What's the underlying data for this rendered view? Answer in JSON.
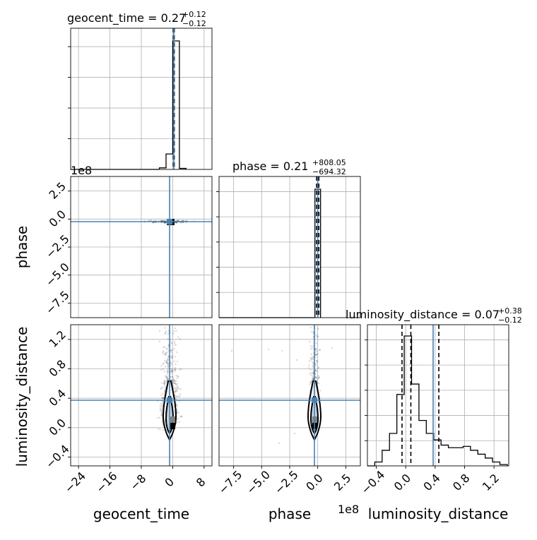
{
  "chart_data": {
    "type": "corner",
    "colors": {
      "truth": "#4682b4",
      "hist": "#000000",
      "grid": "#b0b0b0",
      "scatter": "#000000"
    },
    "parameters": [
      {
        "name": "geocent_time",
        "title_prefix": "geocent_time = 0.27",
        "title_plus": "+0.12",
        "title_minus": "−0.12",
        "axis_label": "geocent_time",
        "ticks": [
          -24,
          -16,
          -8,
          0,
          8
        ],
        "tick_labels": [
          "−24",
          "−16",
          "−8",
          "0",
          "8"
        ],
        "range": [
          -26,
          10
        ],
        "truth": 0.27,
        "quantile_lines": [
          0.15,
          0.27,
          0.39
        ],
        "hist_bins": [
          {
            "x0": -3.4,
            "x1": -1.7,
            "h": 0.012
          },
          {
            "x0": -1.7,
            "x1": 0.0,
            "h": 0.12
          },
          {
            "x0": 0.0,
            "x1": 1.7,
            "h": 1.0
          },
          {
            "x0": 1.7,
            "x1": 3.4,
            "h": 0.008
          }
        ]
      },
      {
        "name": "phase",
        "title_prefix": "phase = 0.21",
        "title_plus": "+808.05",
        "title_minus": "−694.32",
        "axis_label": "phase",
        "ticks": [
          -7.5,
          -5.0,
          -2.5,
          0.0,
          2.5
        ],
        "tick_labels": [
          "−7.5",
          "−5.0",
          "−2.5",
          "0.0",
          "2.5"
        ],
        "offset_text": "1e8",
        "range": [
          -8.8,
          3.8
        ],
        "truth": 0.0,
        "quantile_lines": [
          -0.1,
          0.0,
          0.1
        ],
        "hist_bins": [
          {
            "x0": -0.25,
            "x1": 0.25,
            "h": 1.0
          }
        ]
      },
      {
        "name": "luminosity_distance",
        "title_prefix": "luminosity_distance = 0.07",
        "title_plus": "+0.38",
        "title_minus": "−0.12",
        "axis_label": "luminosity_distance",
        "ticks": [
          -0.4,
          0.0,
          0.4,
          0.8,
          1.2
        ],
        "tick_labels": [
          "−0.4",
          "0.0",
          "0.4",
          "0.8",
          "1.2"
        ],
        "range": [
          -0.52,
          1.4
        ],
        "truth": 0.36,
        "quantile_lines": [
          -0.05,
          0.07,
          0.45
        ],
        "hist_bins": [
          {
            "x0": -0.52,
            "x1": -0.42,
            "h": 0.0
          },
          {
            "x0": -0.42,
            "x1": -0.32,
            "h": 0.03
          },
          {
            "x0": -0.32,
            "x1": -0.22,
            "h": 0.12
          },
          {
            "x0": -0.22,
            "x1": -0.12,
            "h": 0.25
          },
          {
            "x0": -0.12,
            "x1": -0.02,
            "h": 0.55
          },
          {
            "x0": -0.02,
            "x1": 0.08,
            "h": 1.0
          },
          {
            "x0": 0.08,
            "x1": 0.18,
            "h": 0.63
          },
          {
            "x0": 0.18,
            "x1": 0.28,
            "h": 0.35
          },
          {
            "x0": 0.28,
            "x1": 0.38,
            "h": 0.25
          },
          {
            "x0": 0.38,
            "x1": 0.48,
            "h": 0.2
          },
          {
            "x0": 0.48,
            "x1": 0.58,
            "h": 0.16
          },
          {
            "x0": 0.58,
            "x1": 0.68,
            "h": 0.14
          },
          {
            "x0": 0.68,
            "x1": 0.78,
            "h": 0.14
          },
          {
            "x0": 0.78,
            "x1": 0.88,
            "h": 0.15
          },
          {
            "x0": 0.88,
            "x1": 0.98,
            "h": 0.12
          },
          {
            "x0": 0.98,
            "x1": 1.08,
            "h": 0.09
          },
          {
            "x0": 1.08,
            "x1": 1.18,
            "h": 0.06
          },
          {
            "x0": 1.18,
            "x1": 1.28,
            "h": 0.03
          },
          {
            "x0": 1.28,
            "x1": 1.38,
            "h": 0.01
          }
        ]
      }
    ],
    "row_offset_text": "1e8",
    "panels_2d": [
      {
        "row": 1,
        "col": 0,
        "x": "geocent_time",
        "y": "phase",
        "y_ticks": [
          2.5,
          0.0,
          -2.5,
          -5.0,
          -7.5
        ],
        "y_tick_labels": [
          "2.5",
          "0.0",
          "−2.5",
          "−5.0",
          "−7.5"
        ],
        "y_range": [
          -8.8,
          3.8
        ]
      },
      {
        "row": 2,
        "col": 0,
        "x": "geocent_time",
        "y": "luminosity_distance"
      },
      {
        "row": 2,
        "col": 1,
        "x": "phase",
        "y": "luminosity_distance"
      }
    ]
  }
}
